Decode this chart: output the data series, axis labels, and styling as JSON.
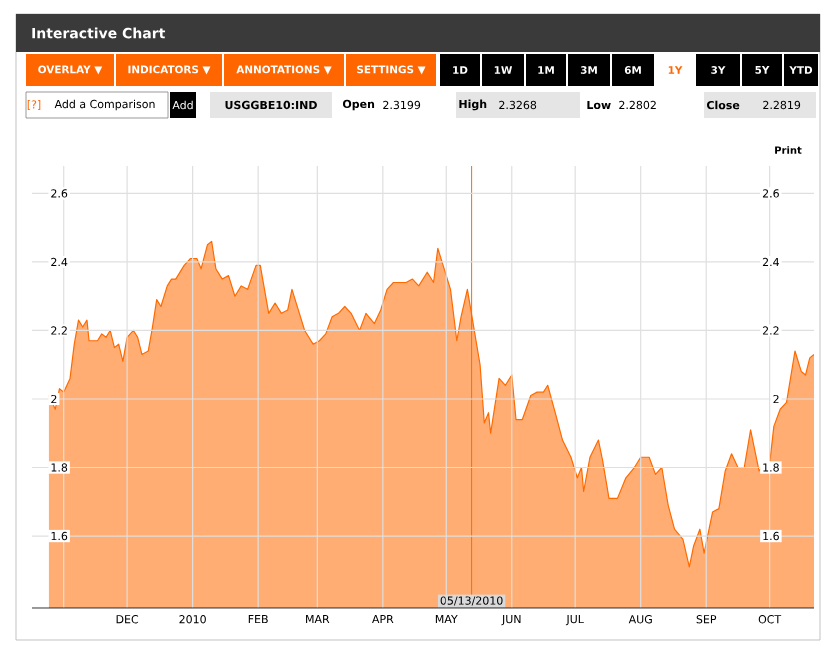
{
  "chart_data": {
    "type": "area",
    "title": "Interactive Chart",
    "x": [
      "2009-10-25",
      "2009-10-28",
      "2009-10-30",
      "2009-11-01",
      "2009-11-04",
      "2009-11-06",
      "2009-11-08",
      "2009-11-10",
      "2009-11-12",
      "2009-11-13",
      "2009-11-17",
      "2009-11-19",
      "2009-11-21",
      "2009-11-23",
      "2009-11-25",
      "2009-11-27",
      "2009-11-29",
      "2009-12-01",
      "2009-12-04",
      "2009-12-06",
      "2009-12-08",
      "2009-12-11",
      "2009-12-13",
      "2009-12-15",
      "2009-12-17",
      "2009-12-20",
      "2009-12-22",
      "2009-12-24",
      "2009-12-28",
      "2009-12-31",
      "2010-01-03",
      "2010-01-05",
      "2010-01-08",
      "2010-01-10",
      "2010-01-12",
      "2010-01-15",
      "2010-01-18",
      "2010-01-21",
      "2010-01-24",
      "2010-01-27",
      "2010-01-31",
      "2010-02-02",
      "2010-02-06",
      "2010-02-09",
      "2010-02-12",
      "2010-02-15",
      "2010-02-17",
      "2010-02-20",
      "2010-02-23",
      "2010-02-27",
      "2010-03-02",
      "2010-03-05",
      "2010-03-08",
      "2010-03-11",
      "2010-03-14",
      "2010-03-17",
      "2010-03-21",
      "2010-03-24",
      "2010-03-28",
      "2010-03-31",
      "2010-04-03",
      "2010-04-06",
      "2010-04-12",
      "2010-04-15",
      "2010-04-18",
      "2010-04-22",
      "2010-04-25",
      "2010-04-27",
      "2010-04-29",
      "2010-05-03",
      "2010-05-06",
      "2010-05-08",
      "2010-05-11",
      "2010-05-14",
      "2010-05-17",
      "2010-05-19",
      "2010-05-21",
      "2010-05-22",
      "2010-05-26",
      "2010-05-29",
      "2010-06-01",
      "2010-06-03",
      "2010-06-06",
      "2010-06-10",
      "2010-06-13",
      "2010-06-16",
      "2010-06-18",
      "2010-06-22",
      "2010-06-25",
      "2010-06-29",
      "2010-07-02",
      "2010-07-04",
      "2010-07-05",
      "2010-07-08",
      "2010-07-12",
      "2010-07-14",
      "2010-07-17",
      "2010-07-21",
      "2010-07-25",
      "2010-07-29",
      "2010-08-01",
      "2010-08-05",
      "2010-08-08",
      "2010-08-11",
      "2010-08-14",
      "2010-08-17",
      "2010-08-21",
      "2010-08-24",
      "2010-08-26",
      "2010-08-29",
      "2010-08-31",
      "2010-09-04",
      "2010-09-07",
      "2010-09-10",
      "2010-09-13",
      "2010-09-16",
      "2010-09-19",
      "2010-09-22",
      "2010-09-26",
      "2010-09-29",
      "2010-10-01",
      "2010-10-03",
      "2010-10-06",
      "2010-10-09",
      "2010-10-13",
      "2010-10-16",
      "2010-10-18",
      "2010-10-20",
      "2010-10-22"
    ],
    "series": [
      {
        "color": "#ff6a00",
        "values": [
          2.01,
          1.97,
          2.03,
          2.02,
          2.06,
          2.16,
          2.23,
          2.21,
          2.23,
          2.17,
          2.17,
          2.19,
          2.18,
          2.2,
          2.15,
          2.16,
          2.11,
          2.18,
          2.2,
          2.18,
          2.13,
          2.14,
          2.21,
          2.29,
          2.27,
          2.33,
          2.35,
          2.35,
          2.39,
          2.41,
          2.41,
          2.38,
          2.45,
          2.46,
          2.38,
          2.35,
          2.36,
          2.3,
          2.33,
          2.32,
          2.39,
          2.39,
          2.25,
          2.28,
          2.25,
          2.26,
          2.32,
          2.26,
          2.2,
          2.16,
          2.17,
          2.19,
          2.24,
          2.25,
          2.27,
          2.25,
          2.2,
          2.25,
          2.22,
          2.26,
          2.32,
          2.34,
          2.34,
          2.35,
          2.33,
          2.37,
          2.34,
          2.44,
          2.4,
          2.32,
          2.17,
          2.24,
          2.32,
          2.21,
          2.1,
          1.93,
          1.96,
          1.9,
          2.06,
          2.04,
          2.07,
          1.94,
          1.94,
          2.01,
          2.02,
          2.02,
          2.04,
          1.95,
          1.88,
          1.83,
          1.77,
          1.8,
          1.73,
          1.83,
          1.88,
          1.82,
          1.71,
          1.71,
          1.77,
          1.8,
          1.83,
          1.83,
          1.78,
          1.8,
          1.69,
          1.62,
          1.59,
          1.51,
          1.57,
          1.62,
          1.55,
          1.67,
          1.68,
          1.79,
          1.84,
          1.8,
          1.8,
          1.91,
          1.79,
          1.81,
          1.81,
          1.92,
          1.97,
          1.99,
          2.14,
          2.08,
          2.07,
          2.12,
          2.13
        ]
      }
    ],
    "xlim": [
      "2009-10-17",
      "2010-10-22"
    ],
    "xticks": [
      {
        "value": "2009-11-01",
        "label": null
      },
      {
        "value": "2009-12-01",
        "label": "DEC"
      },
      {
        "value": "2010-01-01",
        "label": "2010"
      },
      {
        "value": "2010-02-01",
        "label": "FEB"
      },
      {
        "value": "2010-03-01",
        "label": "MAR"
      },
      {
        "value": "2010-04-01",
        "label": "APR"
      },
      {
        "value": "2010-05-01",
        "label": "MAY"
      },
      {
        "value": "2010-06-01",
        "label": "JUN"
      },
      {
        "value": "2010-07-01",
        "label": "JUL"
      },
      {
        "value": "2010-08-01",
        "label": "AUG"
      },
      {
        "value": "2010-09-01",
        "label": "SEP"
      },
      {
        "value": "2010-10-01",
        "label": "OCT"
      }
    ],
    "ylim": [
      1.39,
      2.68
    ],
    "yticks": [
      1.6,
      1.8,
      2,
      2.2,
      2.4,
      2.6
    ],
    "y2lim": [
      1.39,
      2.68
    ],
    "y2ticks": [
      1.6,
      1.8,
      2,
      2.2,
      2.4,
      2.6
    ],
    "grid": true,
    "ref_lines": [
      {
        "axis": "x",
        "value": "2010-05-13",
        "label": "05/13/2010",
        "color": "#ff6a00"
      }
    ],
    "annotations": [
      "OVERLAY ▼",
      "INDICATORS ▼",
      "ANNOTATIONS ▼",
      "SETTINGS ▼",
      "1D",
      "1W",
      "1M",
      "3M",
      "6M",
      "1Y",
      "3Y",
      "5Y",
      "YTD",
      "[?]",
      "Add a Comparison",
      "Add",
      "USGGBE10:IND",
      "Open",
      "2.3199",
      "High",
      "2.3268",
      "Low",
      "2.2802",
      "Close",
      "2.2819",
      "Print"
    ]
  }
}
